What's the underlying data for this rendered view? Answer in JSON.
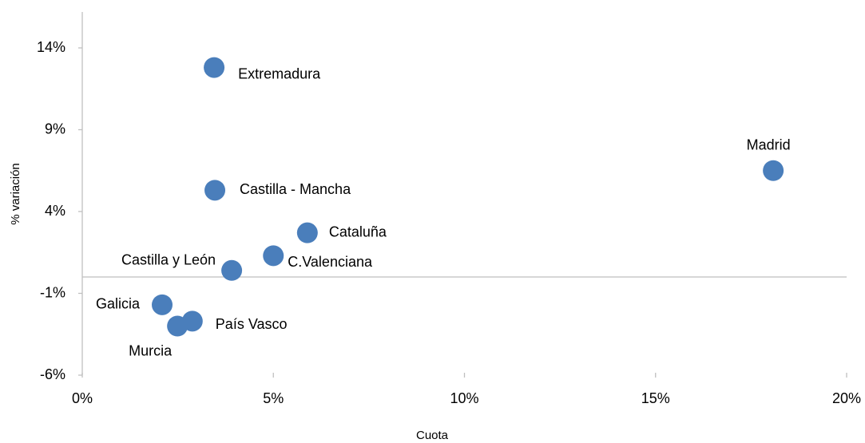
{
  "chart_data": {
    "type": "scatter",
    "x_label": "Cuota",
    "y_label": "% variación",
    "labels": [
      "Extremadura",
      "Madrid",
      "Castilla - Mancha",
      "Cataluña",
      "C.Valenciana",
      "Castilla y León",
      "Galicia",
      "País Vasco",
      "Murcia"
    ],
    "x": [
      3.45,
      18.08,
      3.47,
      5.89,
      5.0,
      3.91,
      2.09,
      2.88,
      2.49
    ],
    "y": [
      12.8,
      6.5,
      5.3,
      2.7,
      1.3,
      0.4,
      -1.7,
      -2.7,
      -3.0
    ],
    "color": "#4a7ebb",
    "xlim": [
      0,
      20
    ],
    "xticks": [
      {
        "value": 0,
        "label": "0%"
      },
      {
        "value": 5,
        "label": "5%"
      },
      {
        "value": 10,
        "label": "10%"
      },
      {
        "value": 15,
        "label": "15%"
      },
      {
        "value": 20,
        "label": "20%"
      }
    ],
    "ylim": [
      -6,
      16
    ],
    "yticks": [
      {
        "value": -6,
        "label": "-6%"
      },
      {
        "value": -1,
        "label": "-1%"
      },
      {
        "value": 4,
        "label": "4%"
      },
      {
        "value": 9,
        "label": "9%"
      },
      {
        "value": 14,
        "label": "14%"
      }
    ]
  }
}
